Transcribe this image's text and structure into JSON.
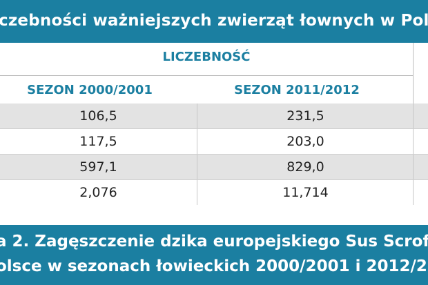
{
  "title_banner": {
    "text": "czebności ważniejszych zwierząt łownych w Pols"
  },
  "table": {
    "group_header": "LICZEBNOŚĆ",
    "columns": [
      "SEZON 2000/2001",
      "SEZON 2011/2012"
    ],
    "rows": [
      [
        "106,5",
        "231,5"
      ],
      [
        "117,5",
        "203,0"
      ],
      [
        "597,1",
        "829,0"
      ],
      [
        "2,076",
        "11,714"
      ]
    ]
  },
  "caption_banner": {
    "line1": "a 2. Zagęszczenie dzika europejskiego Sus Scrof",
    "line2": "olsce w sezonach łowieckich 2000/2001 i 2012/2"
  },
  "colors": {
    "accent": "#1b7fa1",
    "row_shade": "#e3e3e3"
  }
}
